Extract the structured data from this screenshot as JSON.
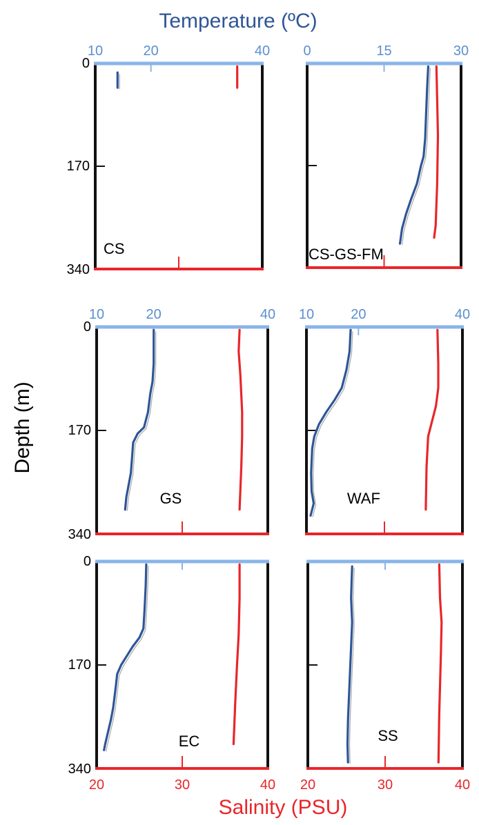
{
  "colors": {
    "temperature": "#2e5597",
    "temperature_axis": "#8ab4e8",
    "salinity": "#e8262a",
    "frame": "#111111",
    "raw_profile": "#a8a8a8"
  },
  "figure": {
    "top_title": "Temperature (ºC)",
    "bottom_title": "Salinity (PSU)",
    "y_title": "Depth (m)"
  },
  "chart_data": [
    {
      "type": "line",
      "panel": "CS",
      "temp_ticks": [
        "10",
        "20",
        "40"
      ],
      "temp_range": [
        10,
        40
      ],
      "depth_ticks": [
        "0",
        "170",
        "340"
      ],
      "depth_range": [
        0,
        340
      ],
      "salinity_range": [
        20,
        40
      ],
      "series": [
        {
          "name": "",
          "variable": "temperature",
          "points": [
            [
              14.0,
              15
            ],
            [
              14.0,
              40
            ]
          ]
        },
        {
          "name": "",
          "variable": "salinity",
          "points": [
            [
              37.0,
              5
            ],
            [
              37.0,
              40
            ]
          ]
        }
      ]
    },
    {
      "type": "line",
      "panel": "CS-GS-FM",
      "temp_ticks": [
        "0",
        "15",
        "30"
      ],
      "temp_range": [
        0,
        30
      ],
      "depth_ticks": [],
      "depth_range": [
        0,
        340
      ],
      "salinity_range": [
        20,
        40
      ],
      "series": [
        {
          "name": "",
          "variable": "temperature",
          "points": [
            [
              23.6,
              5
            ],
            [
              23.4,
              40
            ],
            [
              23.2,
              80
            ],
            [
              23.0,
              125
            ],
            [
              22.7,
              155
            ],
            [
              22.2,
              170
            ],
            [
              21.4,
              200
            ],
            [
              20.3,
              225
            ],
            [
              19.3,
              250
            ],
            [
              18.5,
              275
            ],
            [
              18.1,
              300
            ]
          ]
        },
        {
          "name": "",
          "variable": "salinity",
          "points": [
            [
              36.8,
              5
            ],
            [
              36.9,
              60
            ],
            [
              37.0,
              120
            ],
            [
              36.9,
              200
            ],
            [
              36.7,
              270
            ],
            [
              36.5,
              290
            ]
          ]
        }
      ]
    },
    {
      "type": "line",
      "panel": "GS",
      "temp_ticks": [
        "10",
        "20",
        "40"
      ],
      "temp_range": [
        10,
        40
      ],
      "depth_ticks": [
        "0",
        "170",
        "340"
      ],
      "depth_range": [
        0,
        340
      ],
      "salinity_range": [
        20,
        40
      ],
      "series": [
        {
          "name": "",
          "variable": "temperature",
          "points": [
            [
              20.0,
              5
            ],
            [
              20.0,
              60
            ],
            [
              19.8,
              90
            ],
            [
              19.4,
              110
            ],
            [
              19.0,
              140
            ],
            [
              18.3,
              165
            ],
            [
              17.2,
              175
            ],
            [
              16.4,
              190
            ],
            [
              16.2,
              215
            ],
            [
              16.0,
              240
            ],
            [
              15.6,
              260
            ],
            [
              15.2,
              280
            ],
            [
              15.0,
              300
            ]
          ]
        },
        {
          "name": "",
          "variable": "salinity",
          "points": [
            [
              36.7,
              5
            ],
            [
              36.6,
              40
            ],
            [
              36.8,
              80
            ],
            [
              37.0,
              140
            ],
            [
              37.0,
              180
            ],
            [
              36.9,
              230
            ],
            [
              36.7,
              300
            ]
          ]
        }
      ]
    },
    {
      "type": "line",
      "panel": "WAF",
      "temp_ticks": [
        "10",
        "20",
        "40"
      ],
      "temp_range": [
        10,
        40
      ],
      "depth_ticks": [],
      "depth_range": [
        0,
        340
      ],
      "salinity_range": [
        20,
        40
      ],
      "series": [
        {
          "name": "",
          "variable": "temperature",
          "points": [
            [
              18.5,
              5
            ],
            [
              18.3,
              40
            ],
            [
              17.7,
              70
            ],
            [
              16.8,
              100
            ],
            [
              15.4,
              120
            ],
            [
              13.8,
              140
            ],
            [
              12.4,
              160
            ],
            [
              11.5,
              180
            ],
            [
              11.1,
              200
            ],
            [
              10.9,
              240
            ],
            [
              11.0,
              270
            ],
            [
              11.4,
              290
            ],
            [
              10.8,
              310
            ]
          ]
        },
        {
          "name": "",
          "variable": "salinity",
          "points": [
            [
              36.8,
              5
            ],
            [
              36.9,
              60
            ],
            [
              36.9,
              100
            ],
            [
              36.6,
              130
            ],
            [
              36.0,
              160
            ],
            [
              35.6,
              180
            ],
            [
              35.4,
              230
            ],
            [
              35.3,
              300
            ]
          ]
        }
      ]
    },
    {
      "type": "line",
      "panel": "EC",
      "temp_ticks": [],
      "temp_range": [
        10,
        40
      ],
      "depth_ticks": [
        "0",
        "170",
        "340"
      ],
      "depth_range": [
        0,
        340
      ],
      "salinity_ticks": [
        "20",
        "30",
        "40"
      ],
      "salinity_range": [
        20,
        40
      ],
      "series": [
        {
          "name": "",
          "variable": "temperature",
          "points": [
            [
              18.7,
              5
            ],
            [
              18.6,
              40
            ],
            [
              18.4,
              80
            ],
            [
              18.2,
              110
            ],
            [
              17.5,
              125
            ],
            [
              16.3,
              140
            ],
            [
              15.3,
              155
            ],
            [
              14.3,
              170
            ],
            [
              13.6,
              185
            ],
            [
              13.3,
              210
            ],
            [
              12.9,
              240
            ],
            [
              12.5,
              260
            ],
            [
              12.0,
              280
            ],
            [
              11.5,
              300
            ],
            [
              11.3,
              310
            ]
          ]
        },
        {
          "name": "",
          "variable": "salinity",
          "points": [
            [
              36.7,
              5
            ],
            [
              36.7,
              60
            ],
            [
              36.6,
              120
            ],
            [
              36.4,
              170
            ],
            [
              36.2,
              230
            ],
            [
              36.0,
              300
            ]
          ]
        }
      ]
    },
    {
      "type": "line",
      "panel": "SS",
      "temp_ticks": [],
      "temp_range": [
        10,
        40
      ],
      "depth_ticks": [],
      "depth_range": [
        0,
        340
      ],
      "salinity_ticks": [
        "20",
        "30",
        "40"
      ],
      "salinity_range": [
        20,
        40
      ],
      "series": [
        {
          "name": "",
          "variable": "temperature",
          "points": [
            [
              18.6,
              8
            ],
            [
              18.5,
              30
            ],
            [
              18.4,
              60
            ],
            [
              18.6,
              100
            ],
            [
              18.4,
              140
            ],
            [
              18.2,
              180
            ],
            [
              18.0,
              220
            ],
            [
              17.8,
              260
            ],
            [
              17.7,
              300
            ],
            [
              17.8,
              330
            ]
          ]
        },
        {
          "name": "",
          "variable": "salinity",
          "points": [
            [
              37.0,
              5
            ],
            [
              37.1,
              60
            ],
            [
              37.3,
              100
            ],
            [
              37.2,
              160
            ],
            [
              37.0,
              250
            ],
            [
              36.9,
              330
            ]
          ]
        }
      ]
    }
  ]
}
